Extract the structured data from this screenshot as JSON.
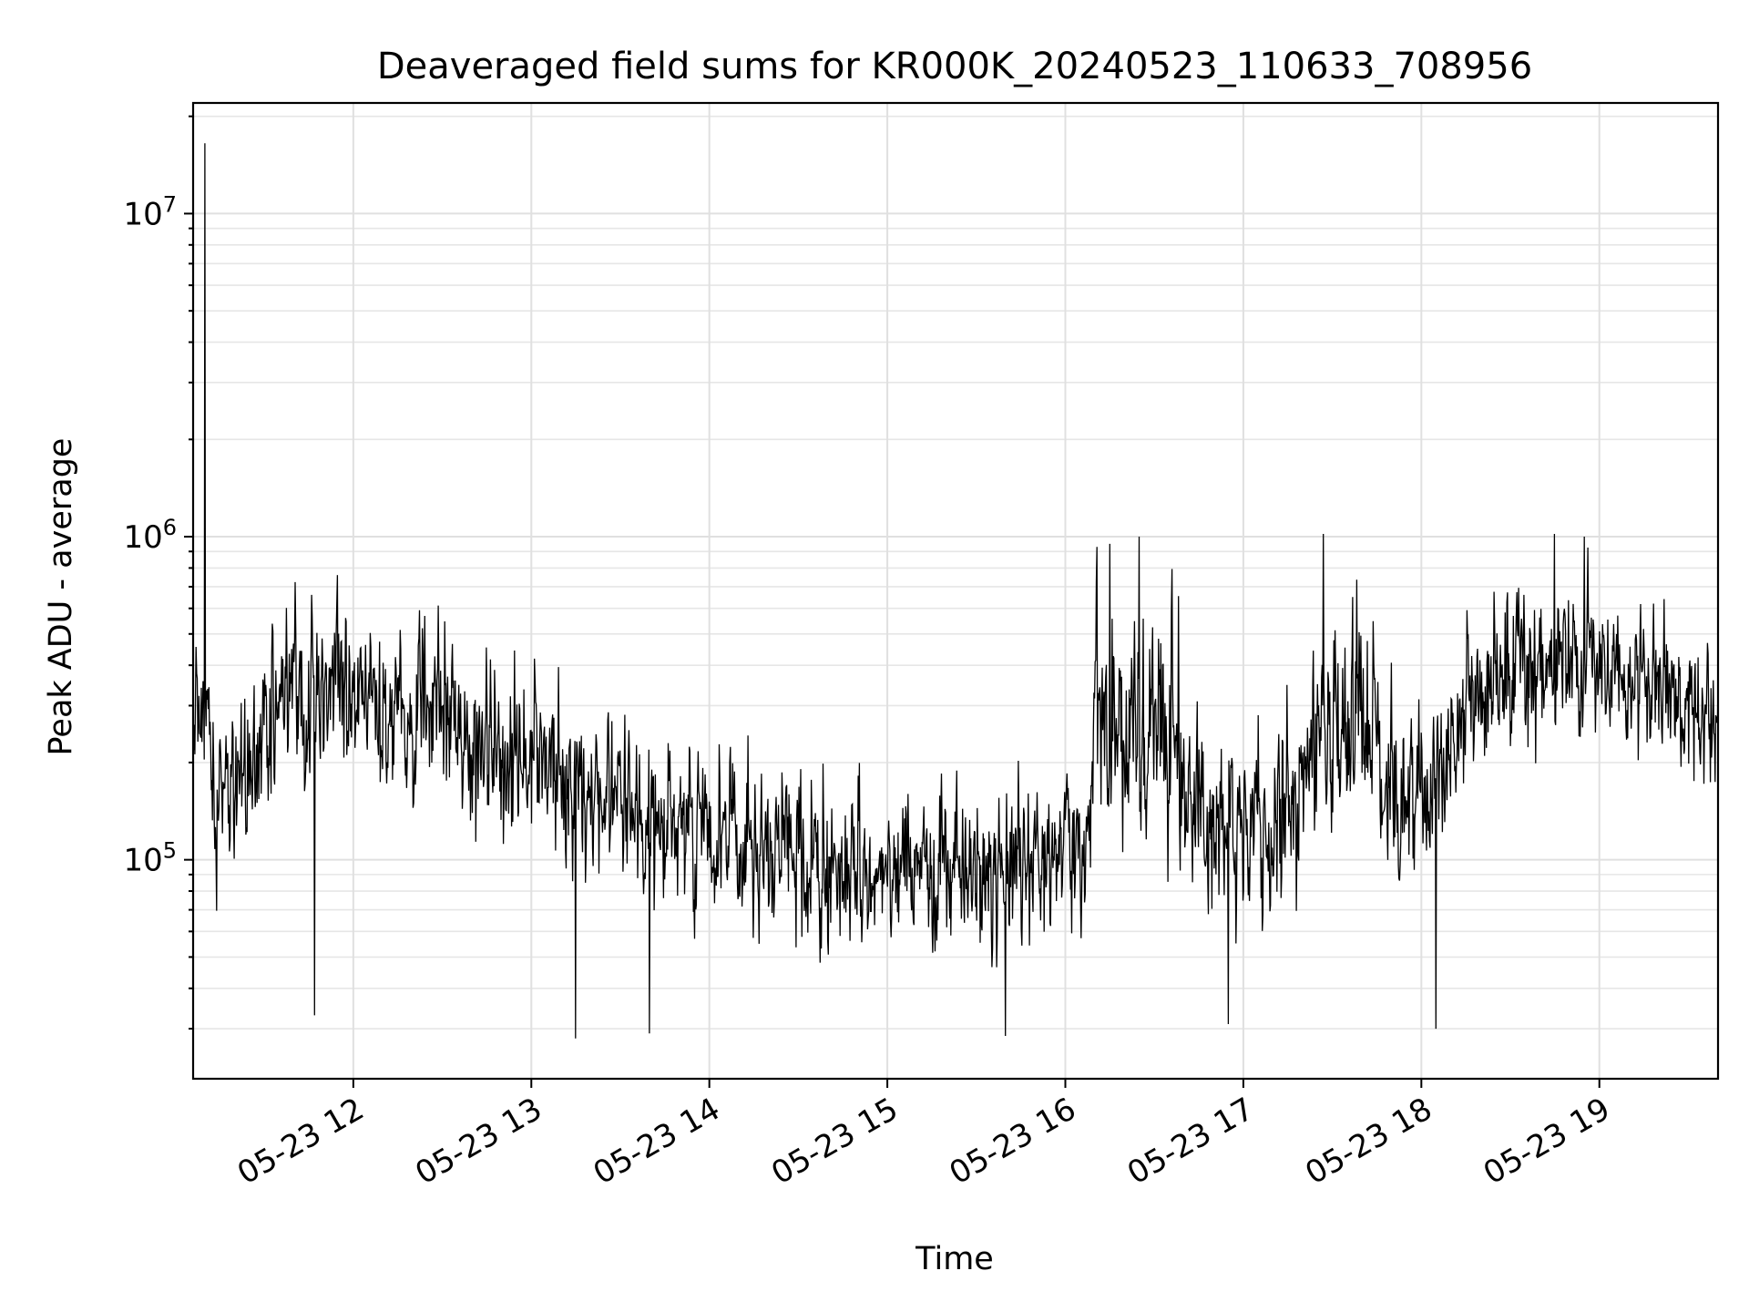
{
  "chart_data": {
    "type": "line",
    "title": "Deaveraged field sums for KR000K_20240523_110633_708956",
    "xlabel": "Time",
    "ylabel": "Peak ADU - average",
    "yscale": "log",
    "ylim": [
      21000,
      22000000
    ],
    "xlim": [
      "2024-05-23 11:06",
      "2024-05-23 19:40"
    ],
    "grid": true,
    "line_color": "#000000",
    "x_ticks": [
      {
        "value": "2024-05-23 12:00",
        "label": "05-23 12"
      },
      {
        "value": "2024-05-23 13:00",
        "label": "05-23 13"
      },
      {
        "value": "2024-05-23 14:00",
        "label": "05-23 14"
      },
      {
        "value": "2024-05-23 15:00",
        "label": "05-23 15"
      },
      {
        "value": "2024-05-23 16:00",
        "label": "05-23 16"
      },
      {
        "value": "2024-05-23 17:00",
        "label": "05-23 17"
      },
      {
        "value": "2024-05-23 18:00",
        "label": "05-23 18"
      },
      {
        "value": "2024-05-23 19:00",
        "label": "05-23 19"
      }
    ],
    "y_ticks": [
      {
        "value": 100000,
        "base": "10",
        "exp": "5"
      },
      {
        "value": 1000000,
        "base": "10",
        "exp": "6"
      },
      {
        "value": 10000000,
        "base": "10",
        "exp": "7"
      }
    ],
    "series_summary": {
      "x_start": "2024-05-23 11:06",
      "x_end": "2024-05-23 19:40",
      "envelope": [
        {
          "t": "2024-05-23 11:06",
          "median": 300000,
          "spread": 0.5
        },
        {
          "t": "2024-05-23 11:15",
          "median": 150000,
          "spread": 0.45
        },
        {
          "t": "2024-05-23 11:35",
          "median": 280000,
          "spread": 0.4
        },
        {
          "t": "2024-05-23 12:00",
          "median": 320000,
          "spread": 0.4
        },
        {
          "t": "2024-05-23 12:30",
          "median": 270000,
          "spread": 0.4
        },
        {
          "t": "2024-05-23 13:00",
          "median": 200000,
          "spread": 0.42
        },
        {
          "t": "2024-05-23 13:30",
          "median": 150000,
          "spread": 0.4
        },
        {
          "t": "2024-05-23 14:00",
          "median": 120000,
          "spread": 0.4
        },
        {
          "t": "2024-05-23 14:30",
          "median": 100000,
          "spread": 0.38
        },
        {
          "t": "2024-05-23 15:00",
          "median": 90000,
          "spread": 0.35
        },
        {
          "t": "2024-05-23 15:30",
          "median": 95000,
          "spread": 0.38
        },
        {
          "t": "2024-05-23 16:00",
          "median": 100000,
          "spread": 0.4
        },
        {
          "t": "2024-05-23 16:08",
          "median": 110000,
          "spread": 0.35
        },
        {
          "t": "2024-05-23 16:10",
          "median": 300000,
          "spread": 0.5
        },
        {
          "t": "2024-05-23 16:40",
          "median": 220000,
          "spread": 0.55
        },
        {
          "t": "2024-05-23 16:50",
          "median": 130000,
          "spread": 0.4
        },
        {
          "t": "2024-05-23 17:10",
          "median": 110000,
          "spread": 0.4
        },
        {
          "t": "2024-05-23 17:20",
          "median": 220000,
          "spread": 0.5
        },
        {
          "t": "2024-05-23 17:40",
          "median": 280000,
          "spread": 0.5
        },
        {
          "t": "2024-05-23 17:50",
          "median": 150000,
          "spread": 0.45
        },
        {
          "t": "2024-05-23 18:08",
          "median": 180000,
          "spread": 0.4
        },
        {
          "t": "2024-05-23 18:15",
          "median": 350000,
          "spread": 0.38
        },
        {
          "t": "2024-05-23 18:45",
          "median": 400000,
          "spread": 0.38
        },
        {
          "t": "2024-05-23 19:15",
          "median": 370000,
          "spread": 0.35
        },
        {
          "t": "2024-05-23 19:40",
          "median": 270000,
          "spread": 0.3
        }
      ],
      "spikes": [
        {
          "t": "2024-05-23 11:10",
          "value": 16500000
        },
        {
          "t": "2024-05-23 11:47",
          "value": 33000
        },
        {
          "t": "2024-05-23 13:15",
          "value": 28000
        },
        {
          "t": "2024-05-23 13:40",
          "value": 29000
        },
        {
          "t": "2024-05-23 15:40",
          "value": 28500
        },
        {
          "t": "2024-05-23 16:15",
          "value": 950000
        },
        {
          "t": "2024-05-23 16:25",
          "value": 1000000
        },
        {
          "t": "2024-05-23 17:27",
          "value": 1020000
        },
        {
          "t": "2024-05-23 18:05",
          "value": 30000
        },
        {
          "t": "2024-05-23 18:45",
          "value": 1020000
        },
        {
          "t": "2024-05-23 18:55",
          "value": 1000000
        },
        {
          "t": "2024-05-23 16:55",
          "value": 31000
        }
      ]
    }
  }
}
